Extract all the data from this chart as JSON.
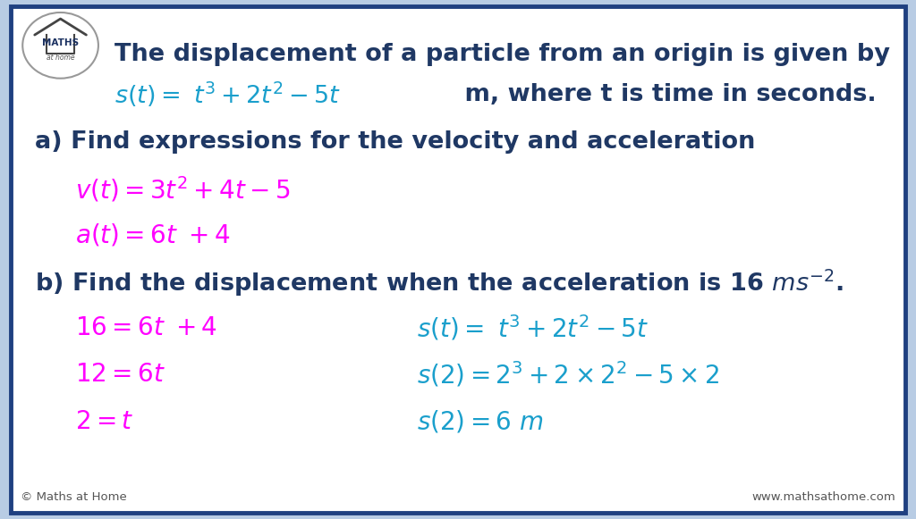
{
  "bg_outer": "#b8cce4",
  "bg_inner": "#ffffff",
  "border_color": "#1f4080",
  "dark_blue": "#1f3864",
  "cyan_color": "#1a9fcc",
  "magenta_color": "#ff00ff",
  "figsize": [
    10.24,
    5.81
  ],
  "dpi": 100,
  "fs_heading": 19.5,
  "fs_body": 19.5,
  "fs_math": 20,
  "fs_small": 9.5,
  "logo_text_maths": "MATHS",
  "logo_text_home": "at home",
  "footer_left": "© Maths at Home",
  "footer_right": "www.mathsathome.com"
}
